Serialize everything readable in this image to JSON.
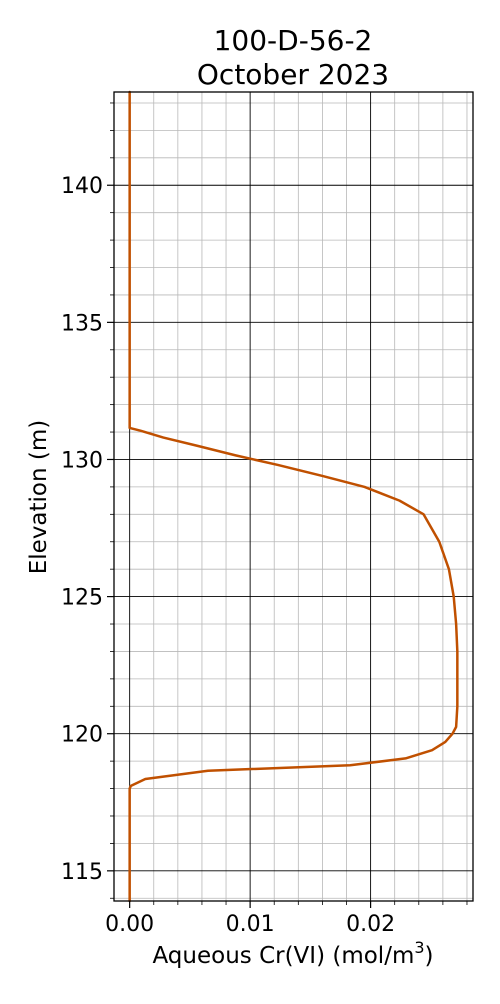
{
  "chart_data": {
    "type": "line",
    "title": [
      "100-D-56-2",
      "October 2023"
    ],
    "xlabel": "Aqueous Cr(VI) (mol/m",
    "xlabel_sup": "3",
    "xlabel_close": ")",
    "ylabel": "Elevation (m)",
    "xlim": [
      -0.0013,
      0.0285
    ],
    "ylim": [
      113.9,
      143.4
    ],
    "x_ticks": [
      0.0,
      0.01,
      0.02
    ],
    "x_tick_labels": [
      "0.00",
      "0.01",
      "0.02"
    ],
    "x_minor_step": 0.002,
    "y_ticks": [
      115,
      120,
      125,
      130,
      135,
      140
    ],
    "y_tick_labels": [
      "115",
      "120",
      "125",
      "130",
      "135",
      "140"
    ],
    "y_minor_step": 1,
    "grid": true,
    "line_color": "#c05000",
    "series": [
      {
        "x": [
          0.0,
          0.0,
          0.0,
          0.0001,
          0.0013,
          0.0065,
          0.0183,
          0.0229,
          0.0251,
          0.0262,
          0.0268,
          0.0271,
          0.0272,
          0.0272,
          0.0272,
          0.0271,
          0.0269,
          0.0265,
          0.0257,
          0.0244,
          0.0224,
          0.0195,
          0.016,
          0.0123,
          0.0088,
          0.0056,
          0.0028,
          0.0009,
          0.0,
          0.0,
          0.0
        ],
        "y": [
          113.9,
          117.8,
          118.0,
          118.1,
          118.35,
          118.65,
          118.85,
          119.1,
          119.4,
          119.7,
          120.0,
          120.25,
          121.0,
          122.0,
          123.0,
          124.0,
          125.0,
          126.0,
          127.0,
          128.0,
          128.5,
          129.0,
          129.4,
          129.8,
          130.15,
          130.5,
          130.8,
          131.05,
          131.15,
          135.0,
          143.4
        ]
      }
    ]
  }
}
